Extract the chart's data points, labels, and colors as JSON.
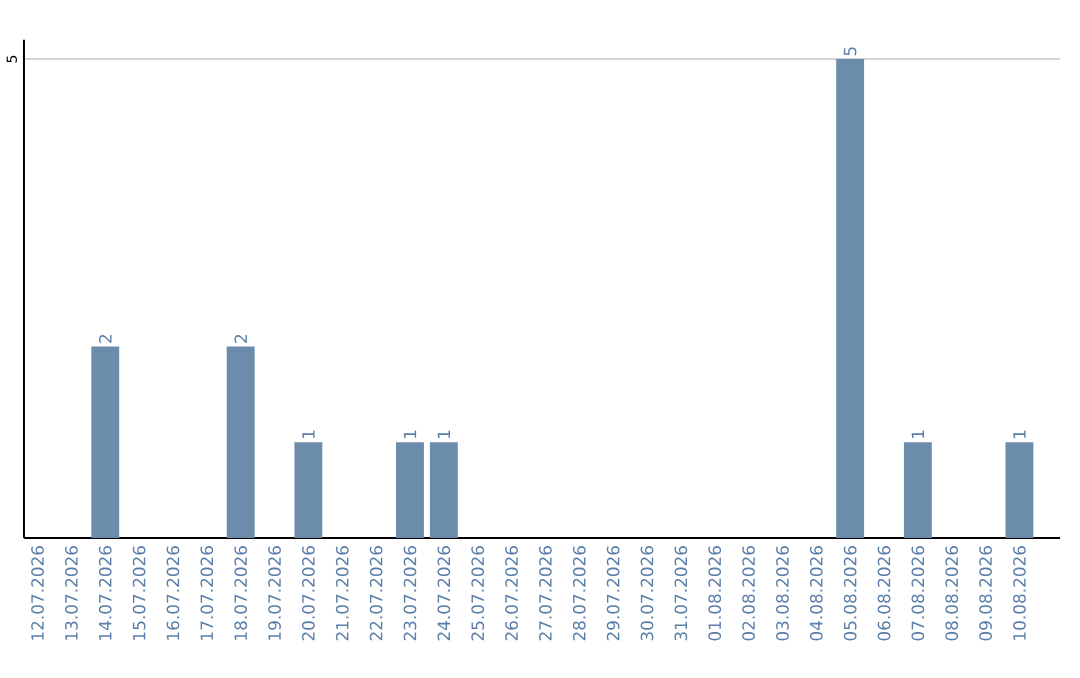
{
  "chart_data": {
    "type": "bar",
    "categories": [
      "12.07.2026",
      "13.07.2026",
      "14.07.2026",
      "15.07.2026",
      "16.07.2026",
      "17.07.2026",
      "18.07.2026",
      "19.07.2026",
      "20.07.2026",
      "21.07.2026",
      "22.07.2026",
      "23.07.2026",
      "24.07.2026",
      "25.07.2026",
      "26.07.2026",
      "27.07.2026",
      "28.07.2026",
      "29.07.2026",
      "30.07.2026",
      "31.07.2026",
      "01.08.2026",
      "02.08.2026",
      "03.08.2026",
      "04.08.2026",
      "05.08.2026",
      "06.08.2026",
      "07.08.2026",
      "08.08.2026",
      "09.08.2026",
      "10.08.2026"
    ],
    "values": [
      0,
      0,
      2,
      0,
      0,
      0,
      2,
      0,
      1,
      0,
      0,
      1,
      1,
      0,
      0,
      0,
      0,
      0,
      0,
      0,
      0,
      0,
      0,
      0,
      5,
      0,
      1,
      0,
      0,
      1
    ],
    "value_labels": [
      null,
      null,
      "2",
      null,
      null,
      null,
      "2",
      null,
      "1",
      null,
      null,
      "1",
      "1",
      null,
      null,
      null,
      null,
      null,
      null,
      null,
      null,
      null,
      null,
      null,
      "5",
      null,
      "1",
      null,
      null,
      "1"
    ],
    "color": "#6b8cab",
    "ylim": [
      0,
      5.2
    ],
    "yticks": [
      5
    ],
    "grid": "y"
  }
}
